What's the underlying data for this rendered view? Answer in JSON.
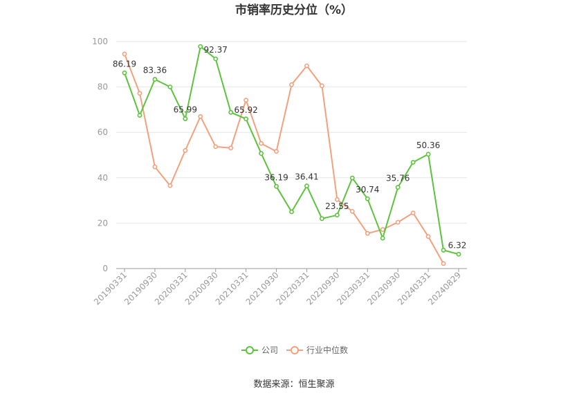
{
  "chart_data": {
    "type": "line",
    "title": "市销率历史分位（%）",
    "source": "数据来源：恒生聚源",
    "ylim": [
      0,
      100
    ],
    "yticks": [
      "0",
      "20",
      "40",
      "60",
      "80",
      "100"
    ],
    "x_tick_labels": [
      "20190331",
      "20190930",
      "20200331",
      "20200930",
      "20210331",
      "20210930",
      "20220331",
      "20220930",
      "20230331",
      "20230930",
      "20240331",
      "20240829"
    ],
    "legend_position": "bottom",
    "series": [
      {
        "name": "公司",
        "color": "#5ac43a",
        "values": [
          86.19,
          67.5,
          83.36,
          80.0,
          65.99,
          97.8,
          92.37,
          68.8,
          65.92,
          50.7,
          36.19,
          25.0,
          36.41,
          22.0,
          23.55,
          39.9,
          30.74,
          13.4,
          35.76,
          46.8,
          50.36,
          8.1,
          6.32
        ],
        "labels": [
          "86.19",
          "",
          "83.36",
          "",
          "65.99",
          "",
          "92.37",
          "",
          "65.92",
          "",
          "36.19",
          "",
          "36.41",
          "",
          "23.55",
          "",
          "30.74",
          "",
          "35.76",
          "",
          "50.36",
          "",
          "6.32"
        ]
      },
      {
        "name": "行业中位数",
        "color": "#f4a07c",
        "values": [
          94.5,
          77.2,
          44.8,
          36.5,
          52.0,
          67.0,
          53.7,
          53.1,
          74.2,
          55.1,
          51.6,
          81.0,
          89.3,
          80.5,
          30.4,
          25.2,
          15.5,
          17.2,
          20.4,
          24.5,
          14.1,
          2.2,
          null
        ]
      }
    ]
  }
}
